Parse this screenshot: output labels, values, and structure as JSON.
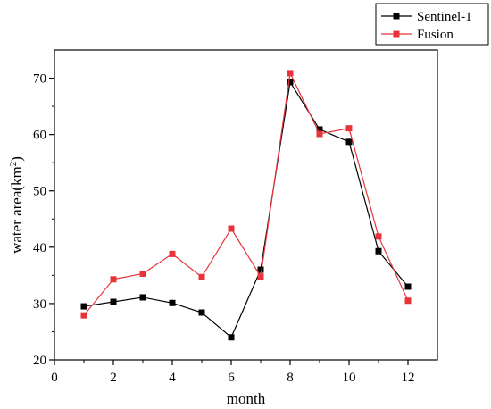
{
  "chart_data": {
    "type": "line",
    "xlabel": "month",
    "ylabel_main": "water area(km",
    "ylabel_sup": "2",
    "ylabel_close": ")",
    "xlim": [
      0,
      13
    ],
    "ylim": [
      20,
      75
    ],
    "xticks": [
      0,
      2,
      4,
      6,
      8,
      10,
      12
    ],
    "yticks": [
      20,
      30,
      40,
      50,
      60,
      70
    ],
    "grid": false,
    "legend_position": "top-right (outside plot)",
    "x": [
      1,
      2,
      3,
      4,
      5,
      6,
      7,
      8,
      9,
      10,
      11,
      12
    ],
    "series": [
      {
        "name": "Sentinel-1",
        "color": "#000000",
        "marker": "square",
        "values": [
          29.5,
          30.3,
          31.1,
          30.1,
          28.4,
          24.0,
          36.0,
          69.3,
          60.9,
          58.7,
          39.3,
          33.0
        ]
      },
      {
        "name": "Fusion",
        "color": "#e8333a",
        "marker": "square",
        "values": [
          27.9,
          34.3,
          35.3,
          38.8,
          34.7,
          43.3,
          34.8,
          70.9,
          60.1,
          61.1,
          41.9,
          30.5
        ]
      }
    ]
  }
}
